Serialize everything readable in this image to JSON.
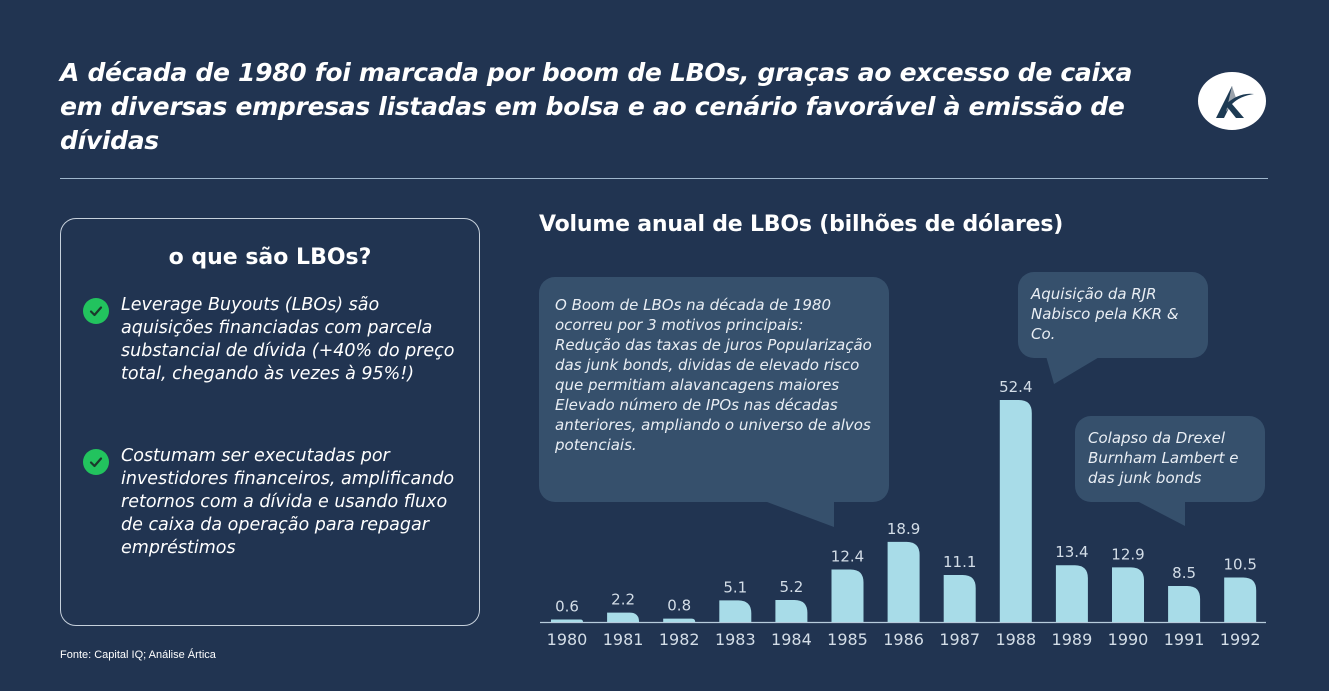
{
  "header": {
    "title": "A década de 1980 foi marcada por boom de LBOs, graças ao excesso de caixa em diversas empresas listadas em bolsa e ao cenário favorável à emissão de dívidas",
    "logo_icon": "artica-logo-icon"
  },
  "info_card": {
    "title": "o que são LBOs?",
    "bullets": [
      {
        "icon": "check-circle-icon",
        "text": "Leverage Buyouts (LBOs) são aquisições financiadas com parcela substancial de dívida (+40% do preço total, chegando às vezes à 95%!)"
      },
      {
        "icon": "check-circle-icon",
        "text": "Costumam ser executadas por investidores financeiros, amplificando retornos com a dívida e usando fluxo de caixa da operação para repagar empréstimos"
      }
    ]
  },
  "source": "Fonte: Capital IQ; Análise Ártica",
  "callouts": {
    "boom": "O Boom de LBOs na década de 1980 ocorreu por 3 motivos principais: Redução das taxas de juros Popularização das junk bonds, dividas de elevado risco que permitiam alavancagens maiores Elevado número de IPOs nas décadas anteriores, ampliando o universo de alvos potenciais.",
    "rjr": "Aquisição da RJR Nabisco pela KKR & Co.",
    "drexel": "Colapso da Drexel Burnham Lambert e das junk bonds"
  },
  "colors": {
    "background": "#213451",
    "bar": "#a8dce8",
    "callout": "#36506c",
    "check": "#22c35e"
  },
  "chart_data": {
    "type": "bar",
    "title": "Volume anual de LBOs (bilhões de dólares)",
    "xlabel": "",
    "ylabel": "",
    "categories": [
      "1980",
      "1981",
      "1982",
      "1983",
      "1984",
      "1985",
      "1986",
      "1987",
      "1988",
      "1989",
      "1990",
      "1991",
      "1992"
    ],
    "values": [
      0.6,
      2.2,
      0.8,
      5.1,
      5.2,
      12.4,
      18.9,
      11.1,
      52.4,
      13.4,
      12.9,
      8.5,
      10.5
    ],
    "value_labels": [
      "0.6",
      "2.2",
      "0.8",
      "5.1",
      "5.2",
      "12.4",
      "18.9",
      "11.1",
      "52.4",
      "13.4",
      "12.9",
      "8.5",
      "10.5"
    ],
    "ylim": [
      0,
      52.4
    ],
    "grid": false,
    "legend": "none"
  }
}
